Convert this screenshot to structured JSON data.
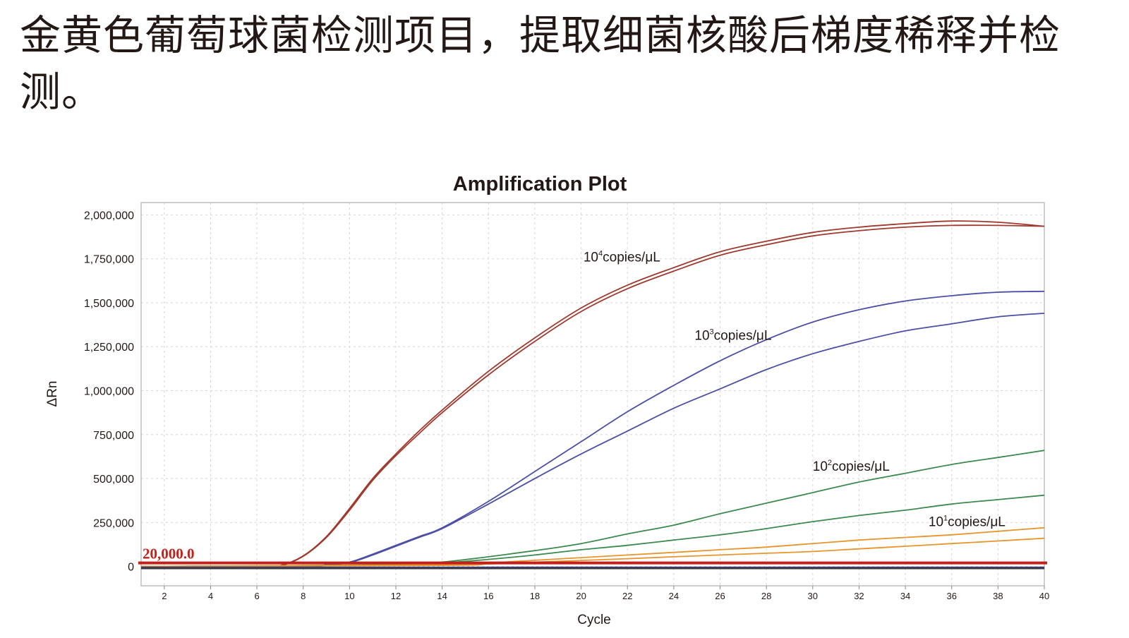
{
  "caption": "金黄色葡萄球菌检测项目，提取细菌核酸后梯度稀释并检测。",
  "chart_data": {
    "type": "line",
    "title": "Amplification Plot",
    "xlabel": "Cycle",
    "ylabel": "ΔRn",
    "xlim": [
      1,
      40
    ],
    "ylim": [
      -110000,
      2070000
    ],
    "x_ticks": [
      "2",
      "4",
      "6",
      "8",
      "10",
      "12",
      "14",
      "16",
      "18",
      "20",
      "22",
      "24",
      "26",
      "28",
      "30",
      "32",
      "34",
      "36",
      "38",
      "40"
    ],
    "y_ticks": [
      {
        "value": 0,
        "label": "0"
      },
      {
        "value": 250000,
        "label": "250,000"
      },
      {
        "value": 500000,
        "label": "500,000"
      },
      {
        "value": 750000,
        "label": "750,000"
      },
      {
        "value": 1000000,
        "label": "1,000,000"
      },
      {
        "value": 1250000,
        "label": "1,250,000"
      },
      {
        "value": 1500000,
        "label": "1,500,000"
      },
      {
        "value": 1750000,
        "label": "1,750,000"
      },
      {
        "value": 2000000,
        "label": "2,000,000"
      }
    ],
    "grid": true,
    "threshold": {
      "value": 20000,
      "label": "20,000.0",
      "color": "#c3211c"
    },
    "series": [
      {
        "group": "1e4",
        "color": "#a0392d",
        "x": [
          1,
          6,
          7,
          8,
          9,
          10,
          11,
          12,
          13,
          14,
          16,
          18,
          20,
          22,
          24,
          26,
          28,
          30,
          32,
          34,
          36,
          38,
          40
        ],
        "y": [
          0,
          0,
          5000,
          60000,
          170000,
          330000,
          500000,
          640000,
          770000,
          890000,
          1110000,
          1300000,
          1470000,
          1600000,
          1700000,
          1790000,
          1850000,
          1900000,
          1930000,
          1950000,
          1965000,
          1958000,
          1935000
        ]
      },
      {
        "group": "1e4",
        "color": "#a0392d",
        "x": [
          1,
          6,
          7,
          8,
          9,
          10,
          11,
          12,
          13,
          14,
          16,
          18,
          20,
          22,
          24,
          26,
          28,
          30,
          32,
          34,
          36,
          38,
          40
        ],
        "y": [
          0,
          0,
          4000,
          58000,
          165000,
          320000,
          490000,
          630000,
          755000,
          875000,
          1090000,
          1280000,
          1450000,
          1580000,
          1680000,
          1770000,
          1830000,
          1880000,
          1910000,
          1930000,
          1940000,
          1940000,
          1935000
        ]
      },
      {
        "group": "1e3",
        "color": "#4b4fa6",
        "x": [
          1,
          8,
          9,
          10,
          11,
          12,
          13,
          14,
          16,
          18,
          20,
          22,
          24,
          26,
          28,
          30,
          32,
          34,
          36,
          38,
          40
        ],
        "y": [
          0,
          0,
          10000,
          25000,
          70000,
          120000,
          170000,
          220000,
          370000,
          540000,
          710000,
          880000,
          1030000,
          1170000,
          1290000,
          1390000,
          1460000,
          1510000,
          1540000,
          1560000,
          1565000
        ]
      },
      {
        "group": "1e3",
        "color": "#4b4fa6",
        "x": [
          1,
          8,
          9,
          10,
          11,
          12,
          13,
          14,
          16,
          18,
          20,
          22,
          24,
          26,
          28,
          30,
          32,
          34,
          36,
          38,
          40
        ],
        "y": [
          0,
          0,
          9000,
          22000,
          65000,
          115000,
          165000,
          215000,
          355000,
          500000,
          640000,
          770000,
          900000,
          1010000,
          1120000,
          1210000,
          1280000,
          1340000,
          1380000,
          1420000,
          1440000
        ]
      },
      {
        "group": "1e2",
        "color": "#3b8a4e",
        "x": [
          1,
          12,
          14,
          16,
          18,
          20,
          22,
          24,
          26,
          28,
          30,
          32,
          34,
          36,
          38,
          40
        ],
        "y": [
          0,
          10000,
          25000,
          55000,
          90000,
          130000,
          185000,
          235000,
          300000,
          360000,
          420000,
          480000,
          530000,
          580000,
          620000,
          660000
        ]
      },
      {
        "group": "1e2",
        "color": "#3b8a4e",
        "x": [
          1,
          12,
          14,
          16,
          18,
          20,
          22,
          24,
          26,
          28,
          30,
          32,
          34,
          36,
          38,
          40
        ],
        "y": [
          0,
          8000,
          20000,
          40000,
          65000,
          95000,
          120000,
          150000,
          180000,
          215000,
          255000,
          290000,
          320000,
          355000,
          380000,
          405000
        ]
      },
      {
        "group": "1e1",
        "color": "#e8952d",
        "x": [
          1,
          14,
          16,
          18,
          20,
          22,
          24,
          26,
          28,
          30,
          32,
          34,
          36,
          38,
          40
        ],
        "y": [
          0,
          10000,
          20000,
          35000,
          50000,
          65000,
          80000,
          95000,
          110000,
          130000,
          150000,
          165000,
          180000,
          200000,
          220000
        ]
      },
      {
        "group": "1e1",
        "color": "#e8952d",
        "x": [
          1,
          14,
          16,
          18,
          20,
          22,
          24,
          26,
          28,
          30,
          32,
          34,
          36,
          38,
          40
        ],
        "y": [
          0,
          6000,
          14000,
          24000,
          34000,
          44000,
          55000,
          65000,
          75000,
          85000,
          100000,
          115000,
          130000,
          145000,
          160000
        ]
      },
      {
        "group": "baseline",
        "color": "#2d2d6e",
        "x": [
          1,
          40
        ],
        "y": [
          -5000,
          -5000
        ]
      },
      {
        "group": "baseline",
        "color": "#333333",
        "x": [
          1,
          40
        ],
        "y": [
          -12000,
          -12000
        ]
      }
    ],
    "annotations": [
      {
        "base": "10",
        "exp": "4",
        "text": "copies/μL",
        "x": 20.1,
        "y": 1735000
      },
      {
        "base": "10",
        "exp": "3",
        "text": "copies/μL",
        "x": 24.9,
        "y": 1290000
      },
      {
        "base": "10",
        "exp": "2",
        "text": "copies/μL",
        "x": 30.0,
        "y": 545000
      },
      {
        "base": "10",
        "exp": "1",
        "text": "copies/μL",
        "x": 35.0,
        "y": 230000
      }
    ]
  }
}
